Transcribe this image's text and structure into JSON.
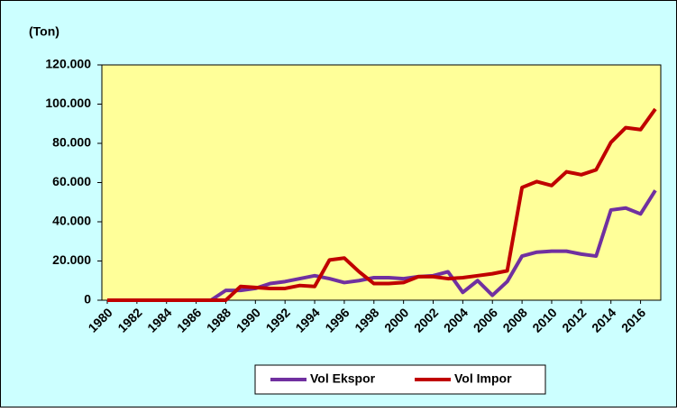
{
  "chart_data": {
    "type": "line",
    "y_label": "(Ton)",
    "x": [
      1980,
      1981,
      1982,
      1983,
      1984,
      1985,
      1986,
      1987,
      1988,
      1989,
      1990,
      1991,
      1992,
      1993,
      1994,
      1995,
      1996,
      1997,
      1998,
      1999,
      2000,
      2001,
      2002,
      2003,
      2004,
      2005,
      2006,
      2007,
      2008,
      2009,
      2010,
      2011,
      2012,
      2013,
      2014,
      2015,
      2016,
      2017
    ],
    "xlim": [
      1980,
      2017
    ],
    "xticks": [
      1980,
      1982,
      1984,
      1986,
      1988,
      1990,
      1992,
      1994,
      1996,
      1998,
      2000,
      2002,
      2004,
      2006,
      2008,
      2010,
      2012,
      2014,
      2016
    ],
    "ylim": [
      0,
      120000
    ],
    "yticks": [
      0,
      {
        "value": 20000,
        "label": "20.000"
      },
      {
        "value": 40000,
        "label": "40.000"
      },
      {
        "value": 60000,
        "label": "60.000"
      },
      {
        "value": 80000,
        "label": "80.000"
      },
      {
        "value": 100000,
        "label": "100.000"
      },
      {
        "value": 120000,
        "label": "120.000"
      }
    ],
    "grid": false,
    "legend": "bottom",
    "series": [
      {
        "name": "Vol Ekspor",
        "color": "#7030a0",
        "values": [
          0,
          0,
          0,
          0,
          0,
          0,
          0,
          0,
          5000,
          5000,
          6000,
          8500,
          9500,
          11000,
          12500,
          11000,
          9000,
          10000,
          11500,
          11500,
          11000,
          12000,
          12500,
          14500,
          4000,
          10000,
          2500,
          9500,
          22500,
          24500,
          25000,
          25000,
          23500,
          22500,
          46000,
          47000,
          44000,
          56000
        ]
      },
      {
        "name": "Vol Impor",
        "color": "#c00000",
        "values": [
          0,
          0,
          0,
          0,
          0,
          0,
          0,
          0,
          0,
          7000,
          6500,
          6000,
          6000,
          7500,
          7000,
          20500,
          21500,
          14500,
          8500,
          8500,
          9000,
          12000,
          12000,
          11000,
          11500,
          12500,
          13500,
          15000,
          57500,
          60500,
          58500,
          65500,
          64000,
          66500,
          80500,
          88000,
          87000,
          97500
        ]
      }
    ]
  }
}
